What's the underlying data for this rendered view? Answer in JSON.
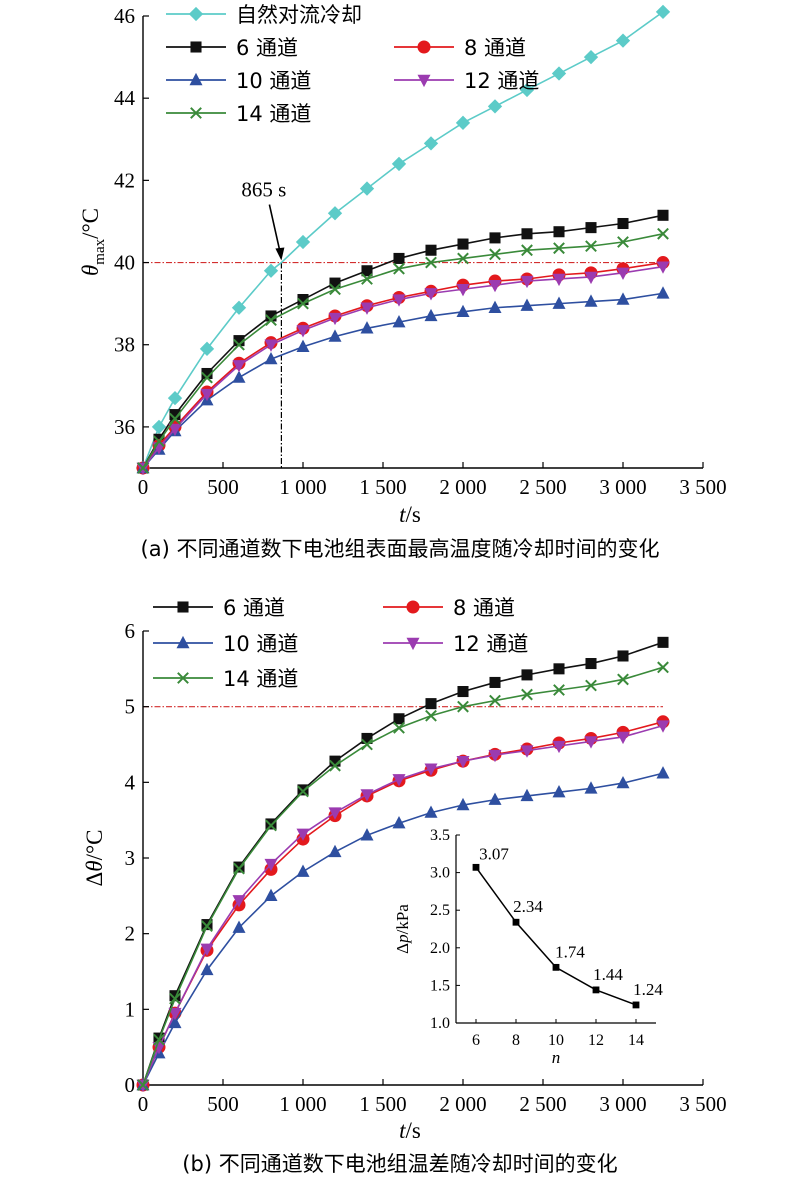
{
  "colors": {
    "natural": "#5ccbc8",
    "ch6": "#111111",
    "ch8": "#e3191d",
    "ch10": "#2e4fa0",
    "ch12": "#9b3bb0",
    "ch14": "#3a8a3a",
    "ref": "#d32f2f"
  },
  "chart_data": [
    {
      "type": "line",
      "caption": "(a) 不同通道数下电池组表面最高温度随冷却时间的变化",
      "xlabel": {
        "italic": "t",
        "unit": "/s"
      },
      "ylabel": {
        "italic": "θ",
        "sub": "max",
        "unit": "/°C"
      },
      "xlim": [
        0,
        3500
      ],
      "ylim": [
        35,
        46
      ],
      "xticks": [
        0,
        500,
        1000,
        1500,
        2000,
        2500,
        3000,
        3500
      ],
      "xtick_labels": [
        "0",
        "500",
        "1 000",
        "1 500",
        "2 000",
        "2 500",
        "3 000",
        "3 500"
      ],
      "yticks": [
        36,
        38,
        40,
        42,
        44,
        46
      ],
      "ytick_labels": [
        "36",
        "38",
        "40",
        "42",
        "44",
        "46"
      ],
      "reference_line": {
        "y": 40,
        "x_end": 3250
      },
      "vertical_line": {
        "x": 865,
        "y_end": 40
      },
      "annotation": {
        "text": "865 s",
        "x": 865,
        "y": 40
      },
      "x": [
        0,
        100,
        200,
        400,
        600,
        800,
        1000,
        1200,
        1400,
        1600,
        1800,
        2000,
        2200,
        2400,
        2600,
        2800,
        3000,
        3250
      ],
      "series": [
        {
          "name": "自然对流冷却",
          "key": "natural",
          "marker": "diamond",
          "x": [
            0,
            100,
            200,
            400,
            600,
            800,
            865,
            1000,
            1200,
            1400,
            1600,
            1800,
            2000,
            2200,
            2400,
            2600,
            2800,
            3000,
            3250
          ],
          "values": [
            35.0,
            36.0,
            36.7,
            37.9,
            38.9,
            39.8,
            40.0,
            40.5,
            41.2,
            41.8,
            42.4,
            42.9,
            43.4,
            43.8,
            44.2,
            44.6,
            45.0,
            45.4,
            46.1
          ]
        },
        {
          "name": "6 通道",
          "key": "ch6",
          "marker": "square",
          "values": [
            35.0,
            35.7,
            36.3,
            37.3,
            38.1,
            38.7,
            39.1,
            39.5,
            39.8,
            40.1,
            40.3,
            40.45,
            40.6,
            40.7,
            40.75,
            40.85,
            40.95,
            41.15
          ]
        },
        {
          "name": "8 通道",
          "key": "ch8",
          "marker": "circle",
          "values": [
            35.0,
            35.55,
            36.0,
            36.85,
            37.55,
            38.05,
            38.4,
            38.7,
            38.95,
            39.15,
            39.3,
            39.45,
            39.55,
            39.6,
            39.7,
            39.75,
            39.85,
            40.0
          ]
        },
        {
          "name": "10 通道",
          "key": "ch10",
          "marker": "triangle",
          "values": [
            35.0,
            35.45,
            35.9,
            36.65,
            37.2,
            37.65,
            37.95,
            38.2,
            38.4,
            38.55,
            38.7,
            38.8,
            38.9,
            38.95,
            39.0,
            39.05,
            39.1,
            39.25
          ]
        },
        {
          "name": "12 通道",
          "key": "ch12",
          "marker": "triangle-down",
          "values": [
            35.0,
            35.5,
            35.95,
            36.8,
            37.5,
            38.0,
            38.35,
            38.65,
            38.9,
            39.1,
            39.25,
            39.35,
            39.45,
            39.55,
            39.6,
            39.65,
            39.75,
            39.9
          ]
        },
        {
          "name": "14 通道",
          "key": "ch14",
          "marker": "x",
          "values": [
            35.0,
            35.65,
            36.2,
            37.2,
            38.0,
            38.6,
            39.0,
            39.35,
            39.6,
            39.85,
            40.0,
            40.1,
            40.2,
            40.3,
            40.35,
            40.4,
            40.5,
            40.7
          ]
        }
      ]
    },
    {
      "type": "line",
      "caption": "(b) 不同通道数下电池组温差随冷却时间的变化",
      "xlabel": {
        "italic": "t",
        "unit": "/s"
      },
      "ylabel": {
        "prefix": "Δ",
        "italic": "θ",
        "unit": "/°C"
      },
      "xlim": [
        0,
        3500
      ],
      "ylim": [
        0,
        6
      ],
      "xticks": [
        0,
        500,
        1000,
        1500,
        2000,
        2500,
        3000,
        3500
      ],
      "xtick_labels": [
        "0",
        "500",
        "1 000",
        "1 500",
        "2 000",
        "2 500",
        "3 000",
        "3 500"
      ],
      "yticks": [
        0,
        1,
        2,
        3,
        4,
        5,
        6
      ],
      "ytick_labels": [
        "0",
        "1",
        "2",
        "3",
        "4",
        "5",
        "6"
      ],
      "reference_line": {
        "y": 5,
        "x_end": 3250
      },
      "x": [
        0,
        100,
        200,
        400,
        600,
        800,
        1000,
        1200,
        1400,
        1600,
        1800,
        2000,
        2200,
        2400,
        2600,
        2800,
        3000,
        3250
      ],
      "series": [
        {
          "name": "6 通道",
          "key": "ch6",
          "marker": "square",
          "values": [
            0,
            0.62,
            1.18,
            2.12,
            2.88,
            3.45,
            3.9,
            4.28,
            4.58,
            4.84,
            5.04,
            5.2,
            5.32,
            5.42,
            5.5,
            5.57,
            5.67,
            5.85
          ]
        },
        {
          "name": "8 通道",
          "key": "ch8",
          "marker": "circle",
          "values": [
            0,
            0.5,
            0.95,
            1.78,
            2.38,
            2.85,
            3.25,
            3.56,
            3.82,
            4.02,
            4.16,
            4.28,
            4.37,
            4.44,
            4.52,
            4.58,
            4.66,
            4.8
          ]
        },
        {
          "name": "10 通道",
          "key": "ch10",
          "marker": "triangle",
          "values": [
            0,
            0.42,
            0.82,
            1.52,
            2.08,
            2.5,
            2.82,
            3.08,
            3.3,
            3.46,
            3.6,
            3.7,
            3.77,
            3.82,
            3.87,
            3.92,
            3.99,
            4.12
          ]
        },
        {
          "name": "12 通道",
          "key": "ch12",
          "marker": "triangle-down",
          "values": [
            0,
            0.5,
            0.95,
            1.8,
            2.44,
            2.92,
            3.32,
            3.6,
            3.84,
            4.04,
            4.18,
            4.28,
            4.36,
            4.42,
            4.48,
            4.54,
            4.6,
            4.75
          ]
        },
        {
          "name": "14 通道",
          "key": "ch14",
          "marker": "x",
          "values": [
            0,
            0.6,
            1.14,
            2.1,
            2.86,
            3.43,
            3.88,
            4.22,
            4.5,
            4.72,
            4.88,
            5.0,
            5.08,
            5.16,
            5.22,
            5.28,
            5.36,
            5.52
          ]
        }
      ],
      "inset": {
        "type": "line",
        "xlabel": {
          "italic": "n"
        },
        "ylabel": {
          "prefix": "Δ",
          "italic": "p",
          "unit": "/kPa"
        },
        "xlim": [
          5,
          15
        ],
        "ylim": [
          1.0,
          3.5
        ],
        "xticks": [
          6,
          8,
          10,
          12,
          14
        ],
        "xtick_labels": [
          "6",
          "8",
          "10",
          "12",
          "14"
        ],
        "yticks": [
          1.0,
          1.5,
          2.0,
          2.5,
          3.0,
          3.5
        ],
        "ytick_labels": [
          "1.0",
          "1.5",
          "2.0",
          "2.5",
          "3.0",
          "3.5"
        ],
        "x": [
          6,
          8,
          10,
          12,
          14
        ],
        "values": [
          3.07,
          2.34,
          1.74,
          1.44,
          1.24
        ],
        "labels": [
          "3.07",
          "2.34",
          "1.74",
          "1.44",
          "1.24"
        ]
      }
    }
  ]
}
